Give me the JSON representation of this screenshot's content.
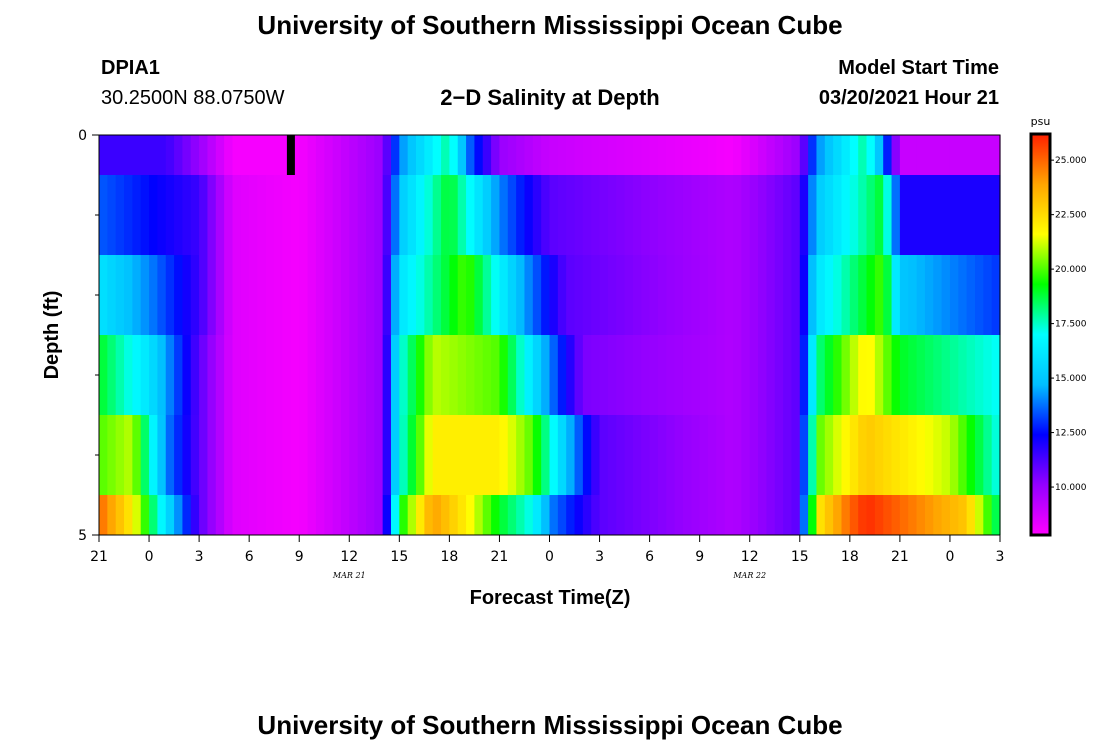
{
  "page": {
    "title_top": "University of Southern Mississippi Ocean Cube",
    "title_bottom": "University of Southern Mississippi Ocean Cube",
    "station_id": "DPIA1",
    "station_coords": "30.2500N 88.0750W",
    "model_start_label": "Model Start Time",
    "model_start_time": "03/20/2021 Hour 21"
  },
  "colors": {
    "scale": [
      "#ff00ff",
      "#9400ff",
      "#0000ff",
      "#00bfff",
      "#00ffff",
      "#00ff00",
      "#ffff00",
      "#ffa500",
      "#ff2000"
    ]
  },
  "chart_data": {
    "type": "heatmap",
    "title": "2−D Salinity at Depth",
    "xlabel": "Forecast Time(Z)",
    "ylabel": "Depth (ft)",
    "x_tick_labels": [
      "21",
      "0",
      "3",
      "6",
      "9",
      "12",
      "15",
      "18",
      "21",
      "0",
      "3",
      "6",
      "9",
      "12",
      "15",
      "18",
      "21",
      "0",
      "3"
    ],
    "x_hours": [
      0,
      54
    ],
    "date_labels": [
      {
        "text": "MAR 21",
        "hour": 15
      },
      {
        "text": "MAR 22",
        "hour": 39
      }
    ],
    "y_tick_labels": [
      "0",
      "5"
    ],
    "ylim": [
      0,
      5
    ],
    "y_minor_ticks": [
      1,
      2,
      3,
      4
    ],
    "colorbar": {
      "unit": "psu",
      "range": [
        7.8,
        26.2
      ],
      "tick_values": [
        10.0,
        12.5,
        15.0,
        17.5,
        20.0,
        22.5,
        25.0
      ],
      "tick_labels": [
        "10.000",
        "12.500",
        "15.000",
        "17.500",
        "20.000",
        "22.500",
        "25.000"
      ]
    },
    "annotation": {
      "type": "marker",
      "hour": 11.5
    },
    "series": [
      {
        "name": "depth 0.0-0.5 ft",
        "keyframes": [
          [
            0,
            11.5
          ],
          [
            4,
            11.5
          ],
          [
            6,
            10
          ],
          [
            8,
            8
          ],
          [
            12,
            8
          ],
          [
            17,
            10
          ],
          [
            18,
            14
          ],
          [
            21,
            18
          ],
          [
            22,
            14
          ],
          [
            24,
            10
          ],
          [
            27,
            9
          ],
          [
            38,
            8
          ],
          [
            42,
            10
          ],
          [
            43,
            14
          ],
          [
            46,
            18
          ],
          [
            47,
            14
          ],
          [
            48,
            9
          ],
          [
            54,
            9
          ]
        ]
      },
      {
        "name": "depth 0.5-1.5 ft",
        "keyframes": [
          [
            0,
            13.5
          ],
          [
            3,
            12.5
          ],
          [
            6,
            11.5
          ],
          [
            8,
            8.5
          ],
          [
            12,
            8
          ],
          [
            17,
            10
          ],
          [
            18,
            15
          ],
          [
            21,
            19
          ],
          [
            24,
            14
          ],
          [
            27,
            11
          ],
          [
            38,
            9.5
          ],
          [
            42,
            11
          ],
          [
            43,
            15
          ],
          [
            47,
            19
          ],
          [
            48,
            12
          ],
          [
            54,
            12
          ]
        ]
      },
      {
        "name": "depth 1.5-2.5 ft",
        "keyframes": [
          [
            0,
            16
          ],
          [
            3,
            14
          ],
          [
            6,
            11.5
          ],
          [
            8,
            8.5
          ],
          [
            12,
            8
          ],
          [
            17,
            10
          ],
          [
            18,
            16
          ],
          [
            22,
            20
          ],
          [
            25,
            15
          ],
          [
            28,
            11
          ],
          [
            38,
            9.5
          ],
          [
            42,
            11
          ],
          [
            43,
            16
          ],
          [
            47,
            20
          ],
          [
            48,
            15
          ],
          [
            54,
            13
          ]
        ]
      },
      {
        "name": "depth 2.5-3.5 ft",
        "keyframes": [
          [
            0,
            19
          ],
          [
            3,
            16
          ],
          [
            6,
            11
          ],
          [
            8,
            8.5
          ],
          [
            12,
            8
          ],
          [
            17,
            10
          ],
          [
            18,
            17
          ],
          [
            20,
            21
          ],
          [
            24,
            20
          ],
          [
            27,
            14
          ],
          [
            29,
            10.5
          ],
          [
            38,
            9.5
          ],
          [
            42,
            11
          ],
          [
            43,
            18
          ],
          [
            46,
            22
          ],
          [
            48,
            19
          ],
          [
            54,
            17
          ]
        ]
      },
      {
        "name": "depth 3.5-4.5 ft",
        "keyframes": [
          [
            0,
            20
          ],
          [
            2,
            21
          ],
          [
            4,
            14
          ],
          [
            6,
            11
          ],
          [
            8,
            8.5
          ],
          [
            12,
            8
          ],
          [
            17,
            10
          ],
          [
            18,
            17
          ],
          [
            20,
            22
          ],
          [
            24,
            22
          ],
          [
            26,
            20
          ],
          [
            28,
            15
          ],
          [
            30,
            11
          ],
          [
            38,
            9.5
          ],
          [
            42,
            11
          ],
          [
            43,
            20
          ],
          [
            46,
            23
          ],
          [
            51,
            21
          ],
          [
            54,
            17
          ]
        ]
      },
      {
        "name": "depth 4.5-5.0 ft",
        "keyframes": [
          [
            0,
            25
          ],
          [
            2,
            22
          ],
          [
            4,
            16
          ],
          [
            6,
            11
          ],
          [
            8,
            8.5
          ],
          [
            12,
            8
          ],
          [
            17,
            10
          ],
          [
            18,
            19
          ],
          [
            20,
            24
          ],
          [
            22,
            22
          ],
          [
            24,
            19
          ],
          [
            26,
            17
          ],
          [
            27,
            14
          ],
          [
            30,
            11
          ],
          [
            38,
            9.5
          ],
          [
            42,
            11
          ],
          [
            43,
            22
          ],
          [
            45,
            25
          ],
          [
            46,
            26
          ],
          [
            52,
            23
          ],
          [
            54,
            18
          ]
        ]
      }
    ]
  }
}
